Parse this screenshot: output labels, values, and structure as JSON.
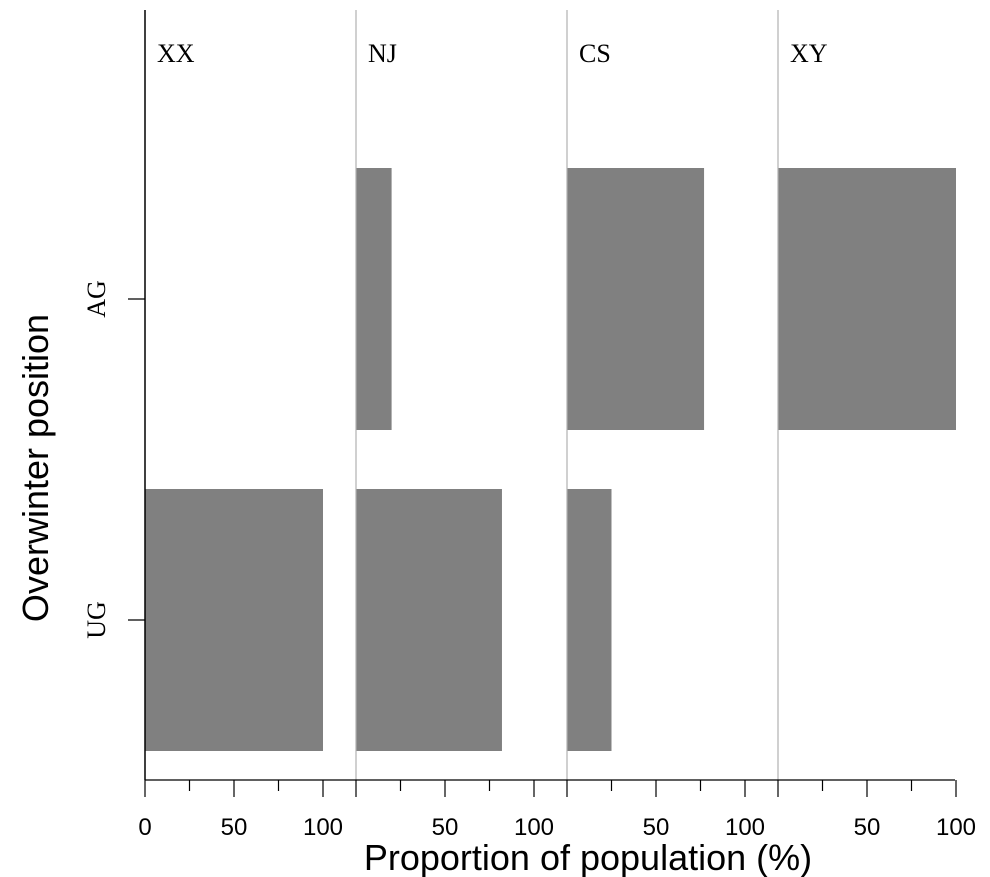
{
  "chart_data": {
    "type": "bar",
    "orientation": "horizontal",
    "panels": [
      {
        "name": "XX",
        "values": {
          "AG": 0,
          "UG": 100
        }
      },
      {
        "name": "NJ",
        "values": {
          "AG": 20,
          "UG": 82
        }
      },
      {
        "name": "CS",
        "values": {
          "AG": 77,
          "UG": 25
        }
      },
      {
        "name": "XY",
        "values": {
          "AG": 100,
          "UG": 0
        }
      }
    ],
    "categories": [
      "AG",
      "UG"
    ],
    "xlabel": "Proportion of population (%)",
    "ylabel": "Overwinter position",
    "xlim": [
      0,
      100
    ],
    "xticks_major": [
      0,
      50,
      100
    ],
    "xticks_minor": [
      25,
      75
    ],
    "xtick_labels_panel1": [
      "0",
      "50",
      "100"
    ],
    "xtick_labels_other": [
      "50",
      "100"
    ],
    "grid": false,
    "bar_color": "#808080",
    "axis_color": "#000000",
    "panel_divider_color": "#b0b0b0"
  }
}
